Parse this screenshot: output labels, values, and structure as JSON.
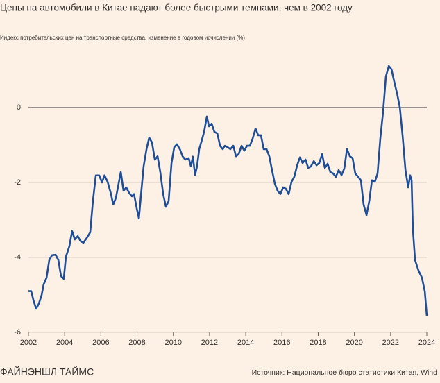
{
  "chart_data": {
    "type": "line",
    "title": "Цены на автомобили в Китае падают более быстрыми темпами, чем в 2002 году",
    "subtitle": "Индекс потребительских цен на транспортные средства, изменение в годовом исчислении (%)",
    "source": "Источник: Национальное бюро статистики Китая, Wind",
    "brand": "ФАЙНЭНШЛ ТАЙМС",
    "xlim": [
      2002,
      2024
    ],
    "xticks": [
      2002,
      2004,
      2006,
      2008,
      2010,
      2012,
      2014,
      2016,
      2018,
      2020,
      2022,
      2024
    ],
    "ylim": [
      -6,
      1.4
    ],
    "yticks": [
      -6,
      -4,
      -2,
      0
    ],
    "grid": true,
    "series": [
      {
        "color": "#1f4e96",
        "x": [
          2002.0,
          2002.15,
          2002.27,
          2002.42,
          2002.57,
          2002.73,
          2002.84,
          2003.0,
          2003.15,
          2003.3,
          2003.5,
          2003.65,
          2003.8,
          2003.95,
          2004.07,
          2004.26,
          2004.41,
          2004.56,
          2004.72,
          2004.87,
          2005.03,
          2005.22,
          2005.41,
          2005.56,
          2005.72,
          2005.91,
          2006.06,
          2006.2,
          2006.37,
          2006.56,
          2006.68,
          2006.83,
          2006.94,
          2007.1,
          2007.25,
          2007.4,
          2007.56,
          2007.71,
          2007.83,
          2007.98,
          2008.1,
          2008.2,
          2008.36,
          2008.52,
          2008.67,
          2008.82,
          2008.98,
          2009.13,
          2009.28,
          2009.44,
          2009.59,
          2009.74,
          2009.9,
          2010.05,
          2010.2,
          2010.36,
          2010.51,
          2010.66,
          2010.85,
          2010.97,
          2011.08,
          2011.2,
          2011.31,
          2011.43,
          2011.54,
          2011.7,
          2011.85,
          2011.97,
          2012.12,
          2012.27,
          2012.43,
          2012.58,
          2012.73,
          2012.85,
          2013.0,
          2013.15,
          2013.31,
          2013.46,
          2013.61,
          2013.77,
          2013.92,
          2014.07,
          2014.23,
          2014.38,
          2014.54,
          2014.69,
          2014.84,
          2014.99,
          2015.15,
          2015.3,
          2015.45,
          2015.61,
          2015.76,
          2015.91,
          2016.07,
          2016.22,
          2016.37,
          2016.53,
          2016.68,
          2016.84,
          2016.99,
          2017.14,
          2017.3,
          2017.45,
          2017.6,
          2017.76,
          2017.91,
          2018.06,
          2018.22,
          2018.37,
          2018.52,
          2018.67,
          2018.83,
          2018.98,
          2019.13,
          2019.29,
          2019.44,
          2019.59,
          2019.75,
          2019.9,
          2020.05,
          2020.21,
          2020.36,
          2020.51,
          2020.67,
          2020.82,
          2020.97,
          2021.13,
          2021.28,
          2021.43,
          2021.59,
          2021.74,
          2021.9,
          2022.05,
          2022.2,
          2022.36,
          2022.51,
          2022.66,
          2022.82,
          2022.97,
          2023.08,
          2023.16,
          2023.23,
          2023.35,
          2023.54,
          2023.73,
          2023.89,
          2024.0
        ],
        "values": [
          -4.9,
          -4.9,
          -5.13,
          -5.37,
          -5.24,
          -5.0,
          -4.72,
          -4.54,
          -4.07,
          -3.94,
          -3.93,
          -4.07,
          -4.5,
          -4.57,
          -3.98,
          -3.7,
          -3.3,
          -3.52,
          -3.43,
          -3.56,
          -3.61,
          -3.48,
          -3.33,
          -2.5,
          -1.81,
          -1.81,
          -2.0,
          -1.81,
          -1.98,
          -2.31,
          -2.59,
          -2.41,
          -2.13,
          -1.72,
          -2.22,
          -2.13,
          -2.28,
          -2.37,
          -2.31,
          -2.69,
          -2.96,
          -2.41,
          -1.57,
          -1.11,
          -0.8,
          -0.93,
          -1.39,
          -1.3,
          -1.72,
          -2.31,
          -2.65,
          -2.5,
          -1.48,
          -1.06,
          -0.98,
          -1.11,
          -1.3,
          -1.39,
          -1.35,
          -1.57,
          -1.31,
          -1.8,
          -1.57,
          -1.11,
          -0.93,
          -0.65,
          -0.24,
          -0.5,
          -0.43,
          -0.65,
          -0.69,
          -1.02,
          -1.11,
          -1.02,
          -1.06,
          -1.11,
          -1.02,
          -1.3,
          -1.24,
          -1.02,
          -1.15,
          -1.02,
          -1.02,
          -0.83,
          -0.56,
          -0.74,
          -0.74,
          -1.11,
          -1.11,
          -1.3,
          -1.67,
          -2.04,
          -2.22,
          -2.31,
          -2.13,
          -2.17,
          -2.31,
          -1.98,
          -1.85,
          -1.54,
          -1.33,
          -1.48,
          -1.39,
          -1.61,
          -1.57,
          -1.43,
          -1.54,
          -1.48,
          -1.24,
          -1.61,
          -1.5,
          -1.72,
          -1.76,
          -1.85,
          -1.67,
          -1.8,
          -1.63,
          -1.11,
          -1.3,
          -1.35,
          -1.76,
          -1.85,
          -1.94,
          -2.59,
          -2.87,
          -2.5,
          -1.94,
          -1.98,
          -1.76,
          -0.83,
          -0.09,
          0.83,
          1.11,
          1.02,
          0.69,
          0.37,
          0.0,
          -0.74,
          -1.67,
          -2.13,
          -1.81,
          -1.94,
          -3.24,
          -4.07,
          -4.35,
          -4.54,
          -4.91,
          -5.56
        ]
      }
    ]
  }
}
